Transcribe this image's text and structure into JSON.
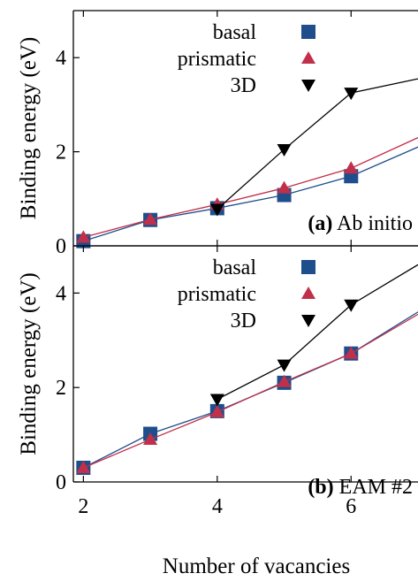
{
  "figure": {
    "x_axis_label": "Number of vacancies"
  },
  "chart_data": [
    {
      "type": "line",
      "panel_label_bold": "(a)",
      "panel_label_text": "Ab initio",
      "ylabel": "Binding energy  (eV)",
      "xlabel": "Number of vacancies",
      "xlim": [
        1.85,
        7.0
      ],
      "ylim": [
        0,
        5
      ],
      "x_ticks": [
        2,
        4,
        6
      ],
      "x_tick_labels": [
        "2",
        "4",
        "6"
      ],
      "y_ticks": [
        0,
        2,
        4
      ],
      "y_tick_labels": [
        "0",
        "2",
        "4"
      ],
      "legend_position": "top",
      "grid": false,
      "series": [
        {
          "name": "basal",
          "marker": "square",
          "color": "#1f4e8c",
          "x": [
            2,
            3,
            4,
            5,
            6,
            7
          ],
          "y": [
            0.1,
            0.55,
            0.8,
            1.08,
            1.48,
            2.1
          ]
        },
        {
          "name": "prismatic",
          "marker": "triangle-up",
          "color": "#c0304a",
          "x": [
            2,
            3,
            4,
            5,
            6,
            7
          ],
          "y": [
            0.18,
            0.56,
            0.88,
            1.23,
            1.65,
            2.3
          ]
        },
        {
          "name": "3D",
          "marker": "triangle-down",
          "color": "#000000",
          "x": [
            4,
            5,
            6,
            7
          ],
          "y": [
            0.78,
            2.05,
            3.25,
            3.55
          ]
        }
      ]
    },
    {
      "type": "line",
      "panel_label_bold": "(b)",
      "panel_label_text": "EAM #2",
      "ylabel": "Binding energy  (eV)",
      "xlabel": "Number of vacancies",
      "xlim": [
        1.85,
        7.0
      ],
      "ylim": [
        0,
        5
      ],
      "x_ticks": [
        2,
        4,
        6
      ],
      "x_tick_labels": [
        "2",
        "4",
        "6"
      ],
      "y_ticks": [
        0,
        2,
        4
      ],
      "y_tick_labels": [
        "0",
        "2",
        "4"
      ],
      "legend_position": "top",
      "grid": false,
      "series": [
        {
          "name": "basal",
          "marker": "square",
          "color": "#1f4e8c",
          "x": [
            2,
            3,
            4,
            5,
            6,
            7
          ],
          "y": [
            0.3,
            1.02,
            1.5,
            2.1,
            2.72,
            3.6
          ]
        },
        {
          "name": "prismatic",
          "marker": "triangle-up",
          "color": "#c0304a",
          "x": [
            2,
            3,
            4,
            5,
            6,
            7
          ],
          "y": [
            0.3,
            0.9,
            1.48,
            2.12,
            2.72,
            3.55
          ]
        },
        {
          "name": "3D",
          "marker": "triangle-down",
          "color": "#000000",
          "x": [
            4,
            5,
            6,
            7
          ],
          "y": [
            1.75,
            2.48,
            3.75,
            4.6
          ]
        }
      ]
    }
  ]
}
